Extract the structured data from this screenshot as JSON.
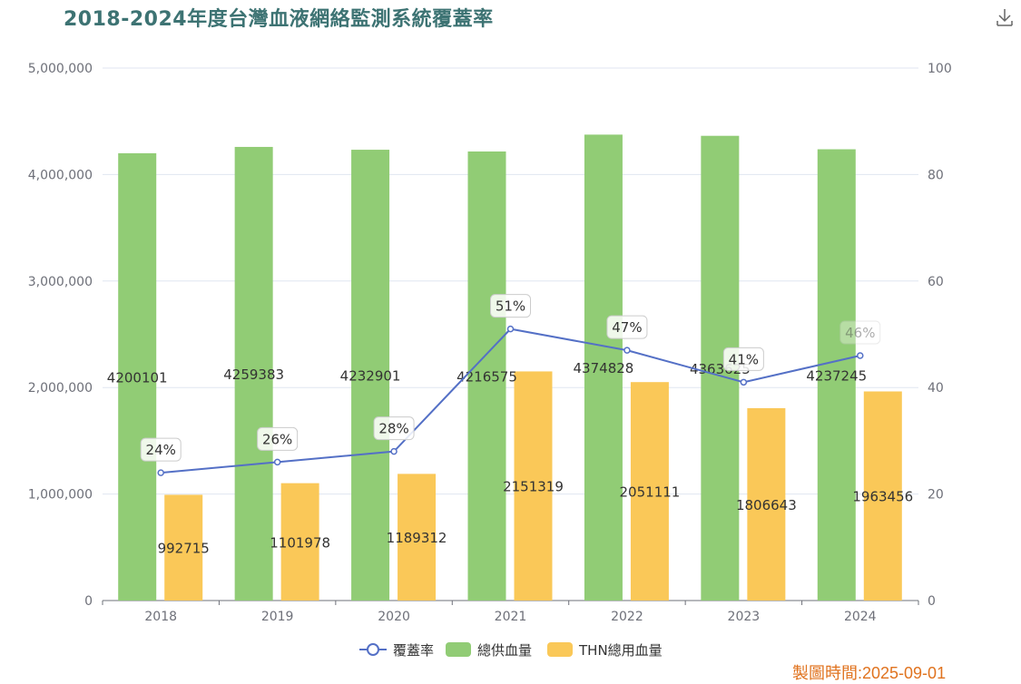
{
  "title": "2018-2024年度台灣血液網絡監測系統覆蓋率",
  "footer": "製圖時間:2025-09-01",
  "download_icon": "download-icon",
  "colors": {
    "supply": "#91cc75",
    "used": "#fac858",
    "rate": "#5470c6",
    "title": "#3d7373",
    "footer": "#e0731f"
  },
  "chart_data": {
    "type": "bar",
    "title": "2018-2024年度台灣血液網絡監測系統覆蓋率",
    "categories": [
      "2018",
      "2019",
      "2020",
      "2021",
      "2022",
      "2023",
      "2024"
    ],
    "series": [
      {
        "name": "覆蓋率",
        "type": "line",
        "axis": "right",
        "values": [
          24,
          26,
          28,
          51,
          47,
          41,
          46
        ],
        "labels": [
          "24%",
          "26%",
          "28%",
          "51%",
          "47%",
          "41%",
          "46%"
        ]
      },
      {
        "name": "總供血量",
        "type": "bar",
        "axis": "left",
        "values": [
          4200101,
          4259383,
          4232901,
          4216575,
          4374828,
          4363625,
          4237245
        ]
      },
      {
        "name": "THN總用血量",
        "type": "bar",
        "axis": "left",
        "values": [
          992715,
          1101978,
          1189312,
          2151319,
          2051111,
          1806643,
          1963456
        ]
      }
    ],
    "left_axis": {
      "ylim": [
        0,
        5000000
      ],
      "ticks": [
        "0",
        "1,000,000",
        "2,000,000",
        "3,000,000",
        "4,000,000",
        "5,000,000"
      ]
    },
    "right_axis": {
      "ylim": [
        0,
        100
      ],
      "ticks": [
        "0",
        "20",
        "40",
        "60",
        "80",
        "100"
      ]
    },
    "grid": true,
    "legend": "bottom-center"
  }
}
